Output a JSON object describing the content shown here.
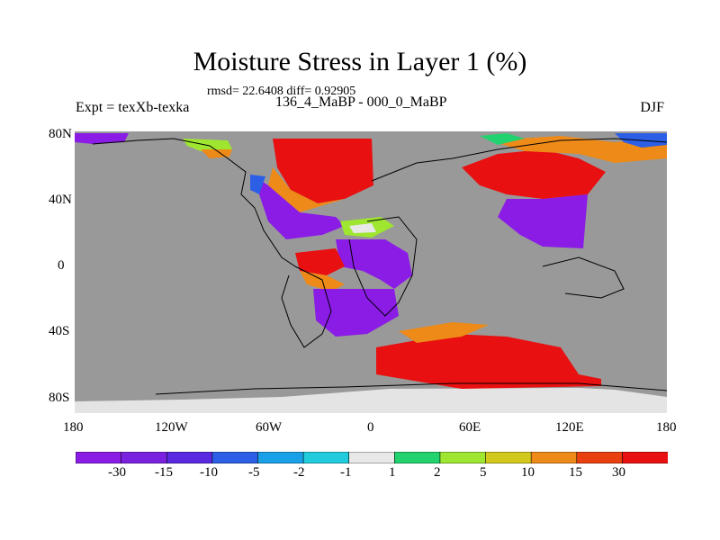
{
  "title": "Moisture Stress in Layer 1 (%)",
  "stats": "rmsd= 22.6408 diff= 0.92905",
  "experiment": "Expt = texXb-texka",
  "period": "136_4_MaBP - 000_0_MaBP",
  "season": "DJF",
  "lat_labels": [
    "80N",
    "40N",
    "0",
    "40S",
    "80S"
  ],
  "lon_labels": [
    "180",
    "120W",
    "60W",
    "0",
    "60E",
    "120E",
    "180"
  ],
  "colorbar": {
    "labels": [
      "-30",
      "-15",
      "-10",
      "-5",
      "-2",
      "-1",
      "1",
      "2",
      "5",
      "10",
      "15",
      "30"
    ],
    "colors": [
      "#8a1ce6",
      "#7a22e0",
      "#5a28e0",
      "#2c5fe6",
      "#1aa0e6",
      "#22ccdc",
      "#e8e8e8",
      "#22d26e",
      "#9ee630",
      "#d2c81e",
      "#ee8a18",
      "#e84010",
      "#e81010"
    ]
  },
  "colors": {
    "ocean": "#999999",
    "ice": "#e4e4e4",
    "coast": "#000000"
  }
}
